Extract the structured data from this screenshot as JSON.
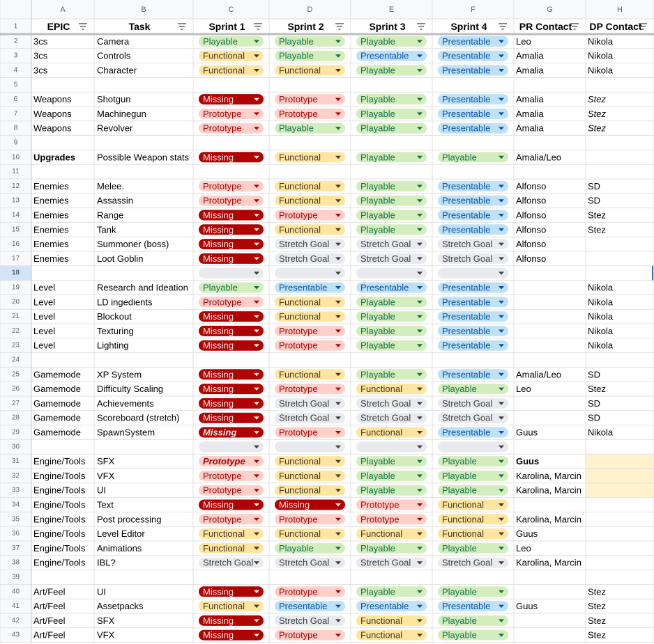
{
  "columns": [
    "A",
    "B",
    "C",
    "D",
    "E",
    "F",
    "G",
    "H"
  ],
  "header": {
    "n": "1",
    "cells": [
      "EPIC",
      "Task",
      "Sprint 1",
      "Sprint 2",
      "Sprint 3",
      "Sprint 4",
      "PR Contact",
      "DP Contact"
    ]
  },
  "rows": [
    {
      "n": "2",
      "epic": "3cs",
      "task": "Camera",
      "sprints": [
        "Playable",
        "Playable",
        "Playable",
        "Presentable"
      ],
      "pr": "Leo",
      "dp": "Nikola"
    },
    {
      "n": "3",
      "epic": "3cs",
      "task": "Controls",
      "sprints": [
        "Functional",
        "Playable",
        "Presentable",
        "Presentable"
      ],
      "pr": "Amalia",
      "dp": "Nikola"
    },
    {
      "n": "4",
      "epic": "3cs",
      "task": "Character",
      "sprints": [
        "Functional",
        "Functional",
        "Playable",
        "Presentable"
      ],
      "pr": "Amalia",
      "dp": "Nikola"
    },
    {
      "n": "5"
    },
    {
      "n": "6",
      "epic": "Weapons",
      "task": "Shotgun",
      "sprints": [
        "Missing",
        "Prototype",
        "Playable",
        "Presentable"
      ],
      "pr": "Amalia",
      "dp": "Stez"
    },
    {
      "n": "7",
      "epic": "Weapons",
      "task": "Machinegun",
      "sprints": [
        "Prototype",
        "Prototype",
        "Playable",
        "Presentable"
      ],
      "pr": "Amalia",
      "dp": "Stez"
    },
    {
      "n": "8",
      "epic": "Weapons",
      "task": "Revolver",
      "sprints": [
        "Prototype",
        "Playable",
        "Playable",
        "Presentable"
      ],
      "pr": "Amalia",
      "dp": "Stez"
    },
    {
      "n": "9"
    },
    {
      "n": "10",
      "epic": "Upgrades",
      "task": "Possible Weapon stats",
      "sprints": [
        "Missing",
        "Functional",
        "Playable",
        "Playable"
      ],
      "pr": "Amalia/Leo"
    },
    {
      "n": "11"
    },
    {
      "n": "12",
      "epic": "Enemies",
      "task": "Melee.",
      "sprints": [
        "Prototype",
        "Functional",
        "Playable",
        "Presentable"
      ],
      "pr": "Alfonso",
      "dp": "SD"
    },
    {
      "n": "13",
      "epic": "Enemies",
      "task": "Assassin",
      "sprints": [
        "Prototype",
        "Functional",
        "Playable",
        "Presentable"
      ],
      "pr": "Alfonso",
      "dp": "SD"
    },
    {
      "n": "14",
      "epic": "Enemies",
      "task": "Range",
      "sprints": [
        "Missing",
        "Prototype",
        "Playable",
        "Presentable"
      ],
      "pr": "Alfonso",
      "dp": "Stez"
    },
    {
      "n": "15",
      "epic": "Enemies",
      "task": "Tank",
      "sprints": [
        "Missing",
        "Functional",
        "Playable",
        "Presentable"
      ],
      "pr": "Alfonso",
      "dp": "Stez"
    },
    {
      "n": "16",
      "epic": "Enemies",
      "task": "Summoner (boss)",
      "sprints": [
        "Missing",
        "Stretch Goal",
        "Stretch Goal",
        "Stretch Goal"
      ],
      "pr": "Alfonso"
    },
    {
      "n": "17",
      "epic": "Enemies",
      "task": "Loot Goblin",
      "sprints": [
        "Missing",
        "Stretch Goal",
        "Stretch Goal",
        "Stretch Goal"
      ],
      "pr": "Alfonso"
    },
    {
      "n": "18",
      "sprints": [
        null,
        null,
        null,
        null
      ]
    },
    {
      "n": "19",
      "epic": "Level",
      "task": "Research and Ideation",
      "sprints": [
        "Playable",
        "Presentable",
        "Presentable",
        "Presentable"
      ],
      "dp": "Nikola"
    },
    {
      "n": "20",
      "epic": "Level",
      "task": "LD ingedients",
      "sprints": [
        "Prototype",
        "Functional",
        "Playable",
        "Presentable"
      ],
      "dp": "Nikola"
    },
    {
      "n": "21",
      "epic": "Level",
      "task": "Blockout",
      "sprints": [
        "Missing",
        "Functional",
        "Playable",
        "Presentable"
      ],
      "dp": "Nikola"
    },
    {
      "n": "22",
      "epic": "Level",
      "task": "Texturing",
      "sprints": [
        "Missing",
        "Prototype",
        "Playable",
        "Presentable"
      ],
      "dp": "Nikola"
    },
    {
      "n": "23",
      "epic": "Level",
      "task": "Lighting",
      "sprints": [
        "Missing",
        "Prototype",
        "Playable",
        "Presentable"
      ],
      "dp": "Nikola"
    },
    {
      "n": "24"
    },
    {
      "n": "25",
      "epic": "Gamemode",
      "task": "XP System",
      "sprints": [
        "Missing",
        "Functional",
        "Playable",
        "Presentable"
      ],
      "pr": "Amalia/Leo",
      "dp": "SD"
    },
    {
      "n": "26",
      "epic": "Gamemode",
      "task": "Difficulty Scaling",
      "sprints": [
        "Missing",
        "Prototype",
        "Functional",
        "Playable"
      ],
      "pr": "Leo",
      "dp": "Stez"
    },
    {
      "n": "27",
      "epic": "Gamemode",
      "task": "Achievements",
      "sprints": [
        "Missing",
        "Stretch Goal",
        "Stretch Goal",
        "Stretch Goal"
      ],
      "dp": "SD"
    },
    {
      "n": "28",
      "epic": "Gamemode",
      "task": "Scoreboard (stretch)",
      "sprints": [
        "Missing",
        "Stretch Goal",
        "Stretch Goal",
        "Stretch Goal"
      ],
      "dp": "SD"
    },
    {
      "n": "29",
      "epic": "Gamemode",
      "task": "SpawnSystem",
      "sprints": [
        "Missing",
        "Prototype",
        "Functional",
        "Presentable"
      ],
      "pr": "Guus",
      "dp": "Nikola"
    },
    {
      "n": "30",
      "sprints": [
        null,
        null,
        null,
        null
      ]
    },
    {
      "n": "31",
      "epic": "Engine/Tools",
      "task": "SFX",
      "sprints": [
        "Prototype",
        "Functional",
        "Playable",
        "Playable"
      ],
      "pr": "Guus"
    },
    {
      "n": "32",
      "epic": "Engine/Tools",
      "task": "VFX",
      "sprints": [
        "Prototype",
        "Functional",
        "Playable",
        "Playable"
      ],
      "pr": "Karolina, Marcin"
    },
    {
      "n": "33",
      "epic": "Engine/Tools",
      "task": "UI",
      "sprints": [
        "Prototype",
        "Functional",
        "Playable",
        "Playable"
      ],
      "pr": "Karolina, Marcin"
    },
    {
      "n": "34",
      "epic": "Engine/Tools",
      "task": "Text",
      "sprints": [
        "Missing",
        "Missing",
        "Prototype",
        "Functional"
      ]
    },
    {
      "n": "35",
      "epic": "Engine/Tools",
      "task": "Post processing",
      "sprints": [
        "Prototype",
        "Prototype",
        "Prototype",
        "Functional"
      ],
      "pr": "Karolina, Marcin"
    },
    {
      "n": "36",
      "epic": "Engine/Tools",
      "task": "Level Editor",
      "sprints": [
        "Functional",
        "Functional",
        "Functional",
        "Functional"
      ],
      "pr": "Guus"
    },
    {
      "n": "37",
      "epic": "Engine/Tools",
      "task": "Animations",
      "sprints": [
        "Functional",
        "Playable",
        "Playable",
        "Playable"
      ],
      "pr": "Leo"
    },
    {
      "n": "38",
      "epic": "Engine/Tools",
      "task": "IBL?",
      "sprints": [
        "Stretch Goal",
        "Stretch Goal",
        "Stretch Goal",
        "Stretch Goal"
      ],
      "pr": "Karolina, Marcin"
    },
    {
      "n": "39"
    },
    {
      "n": "40",
      "epic": "Art/Feel",
      "task": "UI",
      "sprints": [
        "Missing",
        "Prototype",
        "Playable",
        "Playable"
      ],
      "dp": "Stez"
    },
    {
      "n": "41",
      "epic": "Art/Feel",
      "task": "Assetpacks",
      "sprints": [
        "Functional",
        "Presentable",
        "Presentable",
        "Presentable"
      ],
      "pr": "Guus",
      "dp": "Stez"
    },
    {
      "n": "42",
      "epic": "Art/Feel",
      "task": "SFX",
      "sprints": [
        "Missing",
        "Stretch Goal",
        "Functional",
        "Playable"
      ],
      "dp": "Stez"
    },
    {
      "n": "43",
      "epic": "Art/Feel",
      "task": "VFX",
      "sprints": [
        "Missing",
        "Prototype",
        "Functional",
        "Playable"
      ],
      "dp": "Stez"
    }
  ]
}
